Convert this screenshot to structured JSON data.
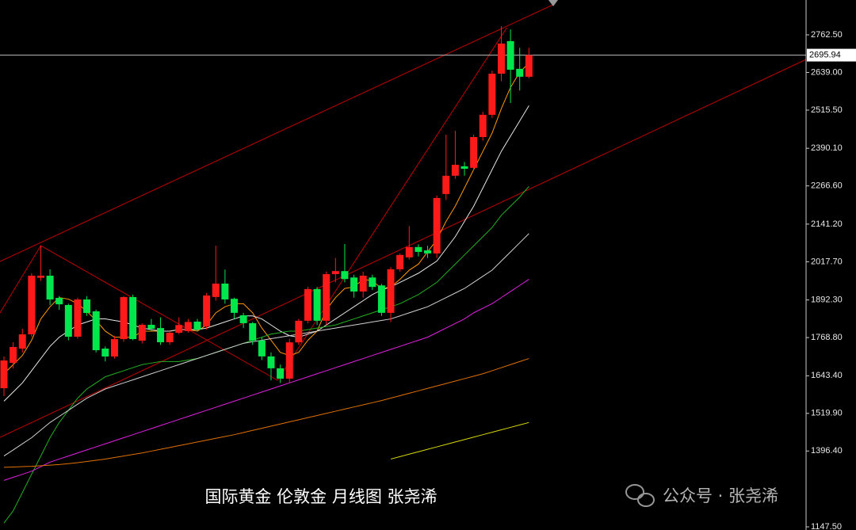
{
  "chart_data": {
    "type": "candlestick",
    "title": "国际黄金 伦敦金 月线图 张尧浠",
    "watermark": "公众号 · 张尧浠",
    "up_color": "#ff1a1a",
    "down_color": "#00e64d",
    "open": [
      1602.6,
      1685.8,
      1732.6,
      1779.4,
      1965,
      1971.9,
      1899,
      1875.7,
      1771.6,
      1893.9,
      1854.9,
      1732.6,
      1706.6,
      1763.8,
      1901.7,
      1758.6,
      1810.7,
      1800,
      1753.5,
      1784.6,
      1790,
      1821,
      1805,
      1902,
      1946,
      1896,
      1842,
      1816,
      1759,
      1707,
      1668,
      1634,
      1753,
      1824,
      1928,
      1824,
      1977,
      1987,
      1966,
      1920,
      1966,
      1940,
      1850,
      1993,
      2032,
      2066,
      2055,
      2045,
      2240,
      2300,
      2331,
      2326,
      2427,
      2500,
      2635,
      2742,
      2651,
      2625
    ],
    "high": [
      1706.6,
      1753.5,
      1797.7,
      1979.7,
      2070.7,
      1992.7,
      1905,
      1880,
      1900,
      1905,
      1860,
      1740,
      1775,
      1905,
      1910,
      1815,
      1830,
      1835,
      1790,
      1835,
      1830,
      1830,
      1915,
      2070,
      1992,
      1900,
      1850,
      1820,
      1770,
      1720,
      1680,
      1765,
      1830,
      1935,
      1935,
      1985,
      2030,
      2075.9,
      1975,
      1985,
      1975,
      1945,
      2000,
      2045,
      2135,
      2075,
      2070,
      2235,
      2434.8,
      2447.9,
      2345,
      2435,
      2510,
      2645,
      2791,
      2780,
      2720,
      2720
    ],
    "low": [
      1576.6,
      1667.6,
      1719.6,
      1771.6,
      1955,
      1875.7,
      1860,
      1760,
      1765,
      1840,
      1720,
      1690,
      1700,
      1755,
      1760,
      1750,
      1790,
      1745,
      1745,
      1780,
      1785,
      1790,
      1795,
      1890,
      1880,
      1830,
      1800,
      1745,
      1695,
      1628,
      1620,
      1620,
      1745,
      1815,
      1810,
      1810,
      1950,
      1950,
      1900,
      1900,
      1925,
      1840,
      1820,
      1985,
      2025,
      2035,
      2030,
      2030,
      2220,
      2290,
      2300,
      2318,
      2415,
      2490,
      2610,
      2539,
      2580,
      2620
    ],
    "close": [
      1693.6,
      1737.8,
      1779.4,
      1971.9,
      1972,
      1893.9,
      1878,
      1771.6,
      1893.9,
      1849.7,
      1727.4,
      1706.6,
      1763.8,
      1901.7,
      1763.8,
      1810.7,
      1797.7,
      1753.5,
      1784.6,
      1810,
      1820,
      1795,
      1907,
      1946,
      1894,
      1850,
      1816,
      1759,
      1707,
      1668,
      1634,
      1753,
      1824,
      1928,
      1824,
      1977,
      1987,
      1961,
      1920,
      1972,
      1935,
      1850,
      1993,
      2040,
      2066,
      2050,
      2045,
      2227,
      2300,
      2336,
      2323,
      2427,
      2500,
      2635,
      2734,
      2648,
      2625,
      2695.94
    ],
    "lines": [
      {
        "color": "#ff9900",
        "values": [
          1650,
          1680,
          1710,
          1760,
          1830,
          1870,
          1900,
          1895,
          1880,
          1855,
          1825,
          1790,
          1770,
          1770,
          1770,
          1790,
          1790,
          1790,
          1790,
          1795,
          1795,
          1790,
          1810,
          1850,
          1870,
          1880,
          1880,
          1850,
          1800,
          1760,
          1720,
          1710,
          1720,
          1760,
          1790,
          1860,
          1900,
          1930,
          1935,
          1960,
          1955,
          1930,
          1935,
          1960,
          1990,
          2010,
          2050,
          2090,
          2150,
          2200,
          2260,
          2320,
          2380,
          2440,
          2520,
          2590,
          2640,
          2670
        ]
      },
      {
        "color": "#e6e6e6",
        "values": [
          1560,
          1590,
          1620,
          1660,
          1700,
          1740,
          1770,
          1790,
          1810,
          1820,
          1830,
          1830,
          1825,
          1820,
          1810,
          1800,
          1795,
          1790,
          1790,
          1795,
          1795,
          1795,
          1800,
          1810,
          1820,
          1830,
          1840,
          1840,
          1830,
          1810,
          1790,
          1775,
          1770,
          1780,
          1790,
          1810,
          1830,
          1850,
          1870,
          1890,
          1910,
          1925,
          1935,
          1950,
          1965,
          1980,
          2000,
          2020,
          2060,
          2100,
          2150,
          2200,
          2260,
          2320,
          2380,
          2430,
          2480,
          2530
        ]
      },
      {
        "color": "#22b022",
        "values": [
          1160,
          1200,
          1260,
          1320,
          1380,
          1440,
          1490,
          1530,
          1570,
          1600,
          1620,
          1640,
          1650,
          1660,
          1670,
          1680,
          1685,
          1690,
          1690,
          1690,
          1695,
          1700,
          1710,
          1720,
          1730,
          1740,
          1750,
          1760,
          1770,
          1780,
          1785,
          1790,
          1790,
          1795,
          1800,
          1805,
          1810,
          1820,
          1830,
          1840,
          1850,
          1860,
          1870,
          1880,
          1895,
          1910,
          1930,
          1950,
          1980,
          2010,
          2040,
          2070,
          2100,
          2130,
          2170,
          2200,
          2230,
          2265
        ]
      },
      {
        "color": "#d0d0d0",
        "values": [
          1380,
          1400,
          1420,
          1440,
          1465,
          1490,
          1510,
          1530,
          1550,
          1570,
          1585,
          1600,
          1610,
          1620,
          1630,
          1640,
          1650,
          1660,
          1670,
          1680,
          1690,
          1700,
          1710,
          1720,
          1730,
          1740,
          1750,
          1755,
          1760,
          1765,
          1770,
          1775,
          1780,
          1785,
          1790,
          1795,
          1800,
          1805,
          1810,
          1815,
          1820,
          1825,
          1830,
          1840,
          1850,
          1860,
          1870,
          1885,
          1900,
          1915,
          1930,
          1950,
          1970,
          1990,
          2020,
          2050,
          2080,
          2110
        ]
      },
      {
        "color": "#e020e0",
        "values": [
          1300,
          1310,
          1320,
          1330,
          1345,
          1360,
          1370,
          1380,
          1390,
          1400,
          1410,
          1420,
          1430,
          1440,
          1450,
          1460,
          1470,
          1480,
          1490,
          1500,
          1510,
          1520,
          1530,
          1540,
          1550,
          1560,
          1570,
          1580,
          1590,
          1600,
          1610,
          1620,
          1630,
          1640,
          1650,
          1660,
          1670,
          1680,
          1690,
          1700,
          1710,
          1720,
          1730,
          1740,
          1750,
          1760,
          1770,
          1785,
          1800,
          1815,
          1830,
          1850,
          1865,
          1880,
          1900,
          1920,
          1940,
          1960
        ]
      },
      {
        "color": "#e07000",
        "values": [
          1343,
          1344,
          1345,
          1346,
          1348,
          1350,
          1352,
          1355,
          1358,
          1362,
          1366,
          1370,
          1375,
          1380,
          1385,
          1390,
          1396,
          1402,
          1408,
          1414,
          1420,
          1426,
          1432,
          1438,
          1444,
          1450,
          1457,
          1464,
          1471,
          1478,
          1485,
          1492,
          1499,
          1506,
          1513,
          1520,
          1527,
          1534,
          1541,
          1548,
          1555,
          1562,
          1570,
          1578,
          1586,
          1594,
          1602,
          1610,
          1618,
          1626,
          1634,
          1642,
          1650,
          1660,
          1670,
          1680,
          1690,
          1700
        ]
      },
      {
        "color": "#d8d800",
        "values": [
          null,
          null,
          null,
          null,
          null,
          null,
          null,
          null,
          null,
          null,
          null,
          null,
          null,
          null,
          null,
          null,
          null,
          null,
          null,
          null,
          null,
          null,
          null,
          null,
          null,
          null,
          null,
          null,
          null,
          null,
          null,
          null,
          null,
          null,
          null,
          null,
          null,
          null,
          null,
          null,
          null,
          null,
          1370,
          1378,
          1386,
          1394,
          1402,
          1410,
          1418,
          1426,
          1434,
          1442,
          1450,
          1458,
          1466,
          1474,
          1482,
          1490
        ]
      }
    ],
    "trendlines": [
      {
        "color": "#c00000",
        "x": [
          -0.43,
          59.8
        ],
        "y": [
          2018.7,
          2863.9
        ]
      },
      {
        "color": "#c00000",
        "x": [
          -0.43,
          87.1
        ],
        "y": [
          1441.3,
          2681.9
        ]
      },
      {
        "color": "#c00000",
        "x": [
          -0.43,
          4,
          29.7,
          54.6
        ],
        "y": [
          1850,
          2070.7,
          1628.6,
          2785.9
        ]
      }
    ],
    "current_price": 2695.94,
    "ylim": [
      1137.1,
      2876.9
    ],
    "yticks": [
      {
        "value": 2762.5,
        "label": "2762.50"
      },
      {
        "value": 2639,
        "label": "2639.00"
      },
      {
        "value": 2515.5,
        "label": "2515.50"
      },
      {
        "value": 2390.1,
        "label": "2390.10"
      },
      {
        "value": 2266.6,
        "label": "2266.60"
      },
      {
        "value": 2141.2,
        "label": "2141.20"
      },
      {
        "value": 2017.7,
        "label": "2017.70"
      },
      {
        "value": 1892.3,
        "label": "1892.30"
      },
      {
        "value": 1768.8,
        "label": "1768.80"
      },
      {
        "value": 1643.4,
        "label": "1643.40"
      },
      {
        "value": 1519.9,
        "label": "1519.90"
      },
      {
        "value": 1396.4,
        "label": "1396.40"
      },
      {
        "value": 1147.5,
        "label": "1147.50"
      }
    ]
  }
}
